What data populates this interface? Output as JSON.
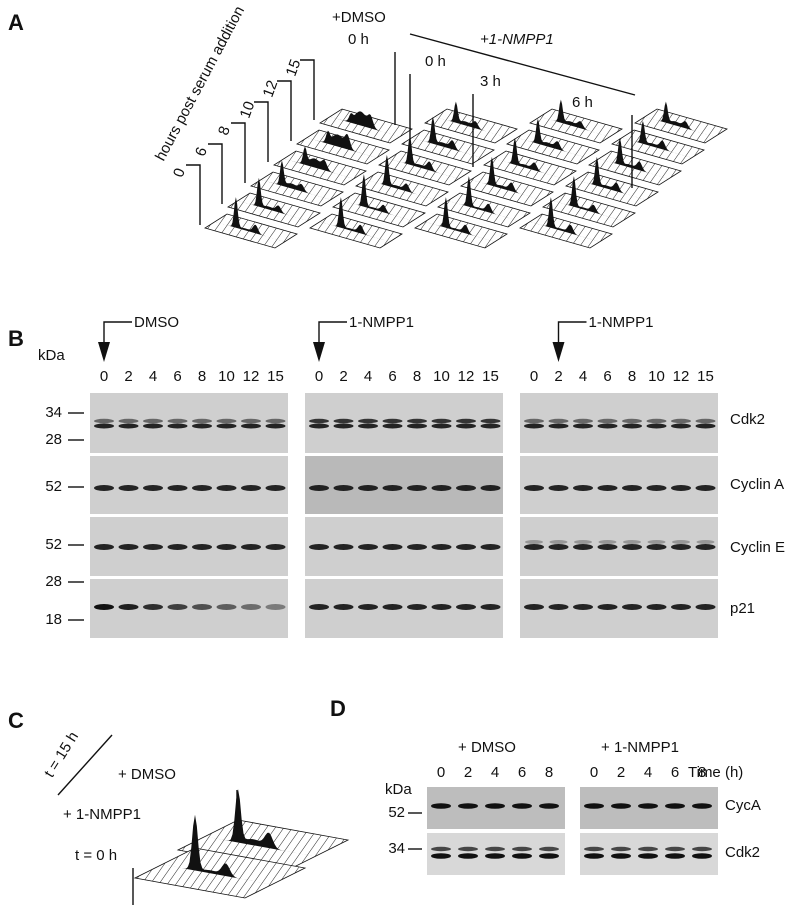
{
  "panels": {
    "A": {
      "label": "A",
      "axis_label": "hours post serum addition",
      "hours": [
        "0",
        "6",
        "8",
        "10",
        "12",
        "15"
      ],
      "dmso": "+DMSO",
      "dmso_time": "0 h",
      "nmpp1": "+1-NMPP1",
      "nmpp1_times": [
        "0 h",
        "3 h",
        "6 h"
      ]
    },
    "B": {
      "label": "B",
      "kda": "kDa",
      "treatments": [
        "DMSO",
        "1-NMPP1",
        "1-NMPP1"
      ],
      "lanes": [
        "0",
        "2",
        "4",
        "6",
        "8",
        "10",
        "12",
        "15"
      ],
      "proteins": [
        "Cdk2",
        "Cyclin A",
        "Cyclin E",
        "p21"
      ],
      "markers": [
        "34",
        "28",
        "52",
        "52",
        "28",
        "18"
      ]
    },
    "C": {
      "label": "C",
      "t15": "t = 15 h",
      "dmso": "+ DMSO",
      "nmpp1": "+ 1-NMPP1",
      "t0": "t = 0 h"
    },
    "D": {
      "label": "D",
      "kda": "kDa",
      "treatments": [
        "+ DMSO",
        "+ 1-NMPP1"
      ],
      "lanes": [
        "0",
        "2",
        "4",
        "6",
        "8"
      ],
      "time": "Time (h)",
      "proteins": [
        "CycA",
        "Cdk2"
      ],
      "markers": [
        "52",
        "34"
      ]
    }
  }
}
